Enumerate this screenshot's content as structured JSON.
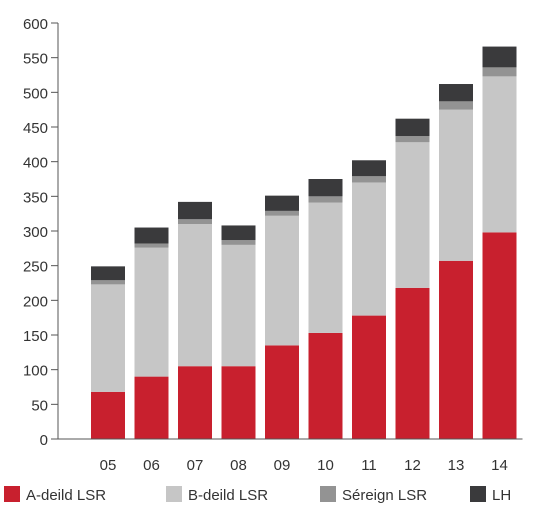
{
  "chart_data": {
    "type": "bar",
    "stacked": true,
    "categories": [
      "05",
      "06",
      "07",
      "08",
      "09",
      "10",
      "11",
      "12",
      "13",
      "14"
    ],
    "series": [
      {
        "name": "A-deild LSR",
        "color": "#c8202e",
        "values": [
          68,
          90,
          105,
          105,
          135,
          153,
          178,
          218,
          257,
          298
        ]
      },
      {
        "name": "B-deild LSR",
        "color": "#c6c6c6",
        "values": [
          155,
          186,
          205,
          175,
          187,
          188,
          192,
          210,
          218,
          225
        ]
      },
      {
        "name": "Séreign LSR",
        "color": "#939393",
        "values": [
          6,
          6,
          7,
          7,
          7,
          9,
          9,
          9,
          12,
          13
        ]
      },
      {
        "name": "LH",
        "color": "#3a3a3c",
        "values": [
          20,
          23,
          25,
          21,
          22,
          25,
          23,
          25,
          25,
          30
        ]
      }
    ],
    "ylim": [
      0,
      600
    ],
    "yticks": [
      "0",
      "50",
      "100",
      "150",
      "200",
      "250",
      "300",
      "350",
      "400",
      "450",
      "500",
      "550",
      "600"
    ],
    "grid": false,
    "legend_position": "bottom"
  }
}
